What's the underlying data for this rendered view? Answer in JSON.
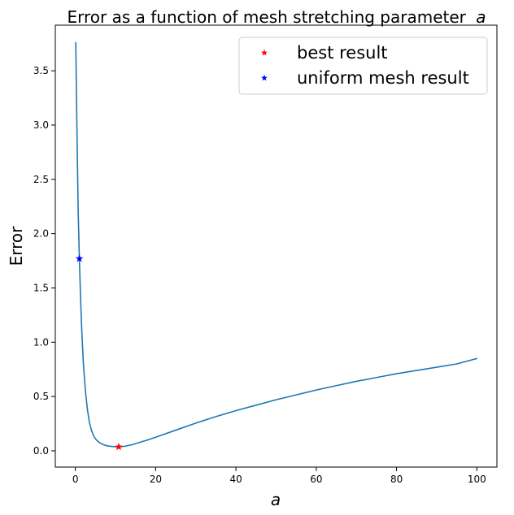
{
  "chart_data": {
    "type": "line",
    "title": "Error as a function of mesh stretching parameter",
    "title_var": "a",
    "xlabel": "a",
    "ylabel": "Error",
    "xlim": [
      -5,
      105
    ],
    "ylim": [
      -0.15,
      3.92
    ],
    "x_ticks": [
      0,
      20,
      40,
      60,
      80,
      100
    ],
    "x_tick_labels": [
      "0",
      "20",
      "40",
      "60",
      "80",
      "100"
    ],
    "y_ticks": [
      0.0,
      0.5,
      1.0,
      1.5,
      2.0,
      2.5,
      3.0,
      3.5
    ],
    "y_tick_labels": [
      "0.0",
      "0.5",
      "1.0",
      "1.5",
      "2.0",
      "2.5",
      "3.0",
      "3.5"
    ],
    "grid": false,
    "legend_position": "top-right",
    "series": [
      {
        "style": "line",
        "color": "#1f77b4",
        "x": [
          0.1,
          0.3,
          0.5,
          0.7,
          1.0,
          1.3,
          1.6,
          2.0,
          2.5,
          3.0,
          3.5,
          4.0,
          4.5,
          5.0,
          5.5,
          6.0,
          7.0,
          8.0,
          9.0,
          10.0,
          10.8,
          12.0,
          14.0,
          16.0,
          18.0,
          20.0,
          25.0,
          30.0,
          35.0,
          40.0,
          45.0,
          50.0,
          55.0,
          60.0,
          65.0,
          70.0,
          75.0,
          80.0,
          85.0,
          90.0,
          95.0,
          100.0
        ],
        "y": [
          3.76,
          3.2,
          2.68,
          2.2,
          1.76,
          1.4,
          1.1,
          0.8,
          0.55,
          0.38,
          0.26,
          0.19,
          0.14,
          0.11,
          0.09,
          0.075,
          0.056,
          0.045,
          0.04,
          0.037,
          0.036,
          0.04,
          0.055,
          0.077,
          0.1,
          0.125,
          0.19,
          0.255,
          0.315,
          0.37,
          0.42,
          0.47,
          0.515,
          0.56,
          0.6,
          0.64,
          0.675,
          0.71,
          0.74,
          0.77,
          0.8,
          0.85
        ]
      },
      {
        "name": "best result",
        "style": "marker",
        "marker": "star",
        "color": "#ff0000",
        "x": [
          10.8
        ],
        "y": [
          0.036
        ]
      },
      {
        "name": "uniform mesh result",
        "style": "marker",
        "marker": "star",
        "color": "#0000ff",
        "x": [
          1.0
        ],
        "y": [
          1.77
        ]
      }
    ]
  }
}
